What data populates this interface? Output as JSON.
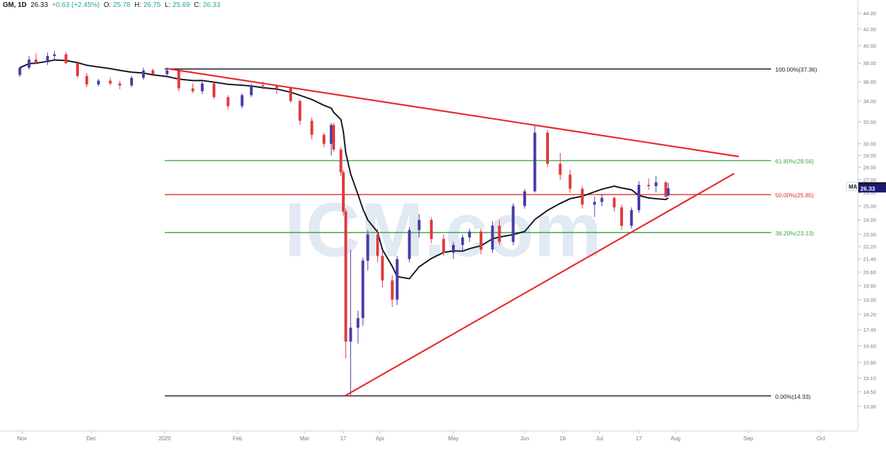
{
  "header": {
    "symbol": "GM, 1D",
    "last": "26.33",
    "change": "+0.63 (+2.45%)",
    "o_label": "O:",
    "o": "25.78",
    "h_label": "H:",
    "h": "26.75",
    "l_label": "L:",
    "l": "25.69",
    "c_label": "C:",
    "c": "26.33"
  },
  "watermark": "ICM.com",
  "badges": {
    "ma_label": "MA",
    "ma_value": "26.48",
    "price_value": "26.33"
  },
  "colors": {
    "up": "#4a3aa8",
    "down": "#e0393e",
    "ma": "#131722",
    "trend": "#e8292c",
    "fib_red": "#e8292c",
    "fib_green": "#3ba84a",
    "fib_black": "#131722",
    "price_badge": "#1e1a72",
    "ma_badge": "#131722"
  },
  "chart_data": {
    "type": "candlestick",
    "symbol": "GM",
    "timeframe": "1D",
    "ylim": [
      13.9,
      44.0
    ],
    "yticks": [
      "13.90",
      "14.50",
      "15.10",
      "15.80",
      "16.60",
      "17.40",
      "18.20",
      "19.00",
      "19.80",
      "20.60",
      "21.40",
      "22.20",
      "23.00",
      "24.00",
      "25.00",
      "26.00",
      "27.00",
      "28.00",
      "29.00",
      "30.00",
      "32.00",
      "34.00",
      "36.00",
      "38.00",
      "40.00",
      "42.00",
      "44.00"
    ],
    "xticks": [
      "Nov",
      "Dec",
      "2020",
      "Feb",
      "Mar",
      "17",
      "Apr",
      "May",
      "Jun",
      "16",
      "Jul",
      "17",
      "Aug",
      "Sep",
      "Oct"
    ],
    "fib_levels": [
      {
        "label": "100.00%(37.36)",
        "value": 37.36,
        "color": "black"
      },
      {
        "label": "61.80%(28.56)",
        "value": 28.56,
        "color": "green"
      },
      {
        "label": "50.00%(25.85)",
        "value": 25.85,
        "color": "red"
      },
      {
        "label": "38.20%(23.13)",
        "value": 23.13,
        "color": "green"
      },
      {
        "label": "0.00%(14.33)",
        "value": 14.33,
        "color": "black"
      }
    ],
    "trendlines": [
      {
        "from": [
          "2020-01-02",
          37.4
        ],
        "to": [
          "2020-08-28",
          28.9
        ]
      },
      {
        "from": [
          "2020-03-18",
          14.35
        ],
        "to": [
          "2020-08-26",
          27.5
        ]
      }
    ],
    "ma_value": 26.48,
    "last_price": 26.33,
    "candles": [
      [
        "2019-10-31",
        36.7,
        37.6,
        36.5,
        37.5
      ],
      [
        "2019-11-04",
        37.5,
        38.8,
        37.3,
        38.4
      ],
      [
        "2019-11-07",
        38.4,
        39.1,
        37.9,
        38.1
      ],
      [
        "2019-11-12",
        38.1,
        39.2,
        37.8,
        38.8
      ],
      [
        "2019-11-15",
        38.8,
        39.4,
        38.3,
        39.0
      ],
      [
        "2019-11-20",
        39.0,
        39.3,
        37.9,
        38.0
      ],
      [
        "2019-11-25",
        38.0,
        38.2,
        36.4,
        36.6
      ],
      [
        "2019-11-29",
        36.6,
        36.9,
        35.4,
        35.7
      ],
      [
        "2019-12-04",
        35.7,
        36.3,
        35.5,
        36.1
      ],
      [
        "2019-12-09",
        36.1,
        36.4,
        35.6,
        35.8
      ],
      [
        "2019-12-13",
        35.8,
        36.1,
        35.2,
        35.6
      ],
      [
        "2019-12-18",
        35.6,
        36.6,
        35.4,
        36.4
      ],
      [
        "2019-12-23",
        36.4,
        37.5,
        36.2,
        37.2
      ],
      [
        "2019-12-27",
        37.2,
        37.4,
        36.6,
        36.8
      ],
      [
        "2020-01-02",
        36.8,
        37.5,
        36.5,
        37.2
      ],
      [
        "2020-01-07",
        37.2,
        37.3,
        35.0,
        35.3
      ],
      [
        "2020-01-13",
        35.3,
        35.8,
        34.8,
        35.0
      ],
      [
        "2020-01-17",
        35.0,
        36.0,
        34.7,
        35.8
      ],
      [
        "2020-01-22",
        35.8,
        35.9,
        34.2,
        34.4
      ],
      [
        "2020-01-28",
        34.4,
        34.6,
        33.2,
        33.5
      ],
      [
        "2020-02-03",
        33.5,
        34.8,
        33.3,
        34.6
      ],
      [
        "2020-02-07",
        34.6,
        35.8,
        34.4,
        35.6
      ],
      [
        "2020-02-12",
        35.6,
        36.0,
        35.2,
        35.5
      ],
      [
        "2020-02-18",
        35.5,
        35.7,
        34.7,
        35.3
      ],
      [
        "2020-02-24",
        35.3,
        35.4,
        33.8,
        34.0
      ],
      [
        "2020-02-28",
        34.0,
        34.2,
        31.7,
        32.1
      ],
      [
        "2020-03-04",
        32.1,
        32.4,
        30.4,
        30.8
      ],
      [
        "2020-03-09",
        30.8,
        31.0,
        29.7,
        30.0
      ],
      [
        "2020-03-12",
        30.0,
        31.9,
        29.0,
        31.7
      ],
      [
        "2020-03-13",
        31.7,
        31.9,
        29.3,
        29.5
      ],
      [
        "2020-03-16",
        29.5,
        29.7,
        27.3,
        27.6
      ],
      [
        "2020-03-17",
        27.6,
        27.8,
        24.3,
        24.6
      ],
      [
        "2020-03-18",
        24.6,
        24.8,
        16.0,
        16.8
      ],
      [
        "2020-03-20",
        16.8,
        22.0,
        14.33,
        17.5
      ],
      [
        "2020-03-23",
        17.5,
        18.4,
        16.7,
        18.0
      ],
      [
        "2020-03-25",
        18.0,
        21.5,
        17.6,
        21.3
      ],
      [
        "2020-03-27",
        21.3,
        23.3,
        20.7,
        23.0
      ],
      [
        "2020-03-31",
        23.0,
        23.4,
        21.2,
        21.6
      ],
      [
        "2020-04-02",
        21.6,
        21.9,
        19.7,
        20.1
      ],
      [
        "2020-04-06",
        20.1,
        20.4,
        18.6,
        19.0
      ],
      [
        "2020-04-08",
        19.0,
        21.6,
        18.7,
        21.4
      ],
      [
        "2020-04-13",
        21.4,
        23.5,
        21.2,
        23.3
      ],
      [
        "2020-04-17",
        23.3,
        24.4,
        22.8,
        24.0
      ],
      [
        "2020-04-22",
        24.0,
        24.2,
        22.4,
        22.7
      ],
      [
        "2020-04-27",
        22.7,
        23.0,
        21.6,
        21.8
      ],
      [
        "2020-05-01",
        21.8,
        22.5,
        21.4,
        22.3
      ],
      [
        "2020-05-05",
        22.3,
        23.0,
        21.9,
        22.8
      ],
      [
        "2020-05-08",
        22.8,
        23.4,
        22.5,
        23.2
      ],
      [
        "2020-05-13",
        23.2,
        23.4,
        21.7,
        22.0
      ],
      [
        "2020-05-18",
        22.0,
        23.9,
        21.8,
        23.6
      ],
      [
        "2020-05-21",
        23.6,
        24.0,
        22.3,
        22.5
      ],
      [
        "2020-05-27",
        22.5,
        25.2,
        22.3,
        25.0
      ],
      [
        "2020-06-01",
        25.0,
        26.3,
        24.8,
        26.1
      ],
      [
        "2020-06-05",
        26.1,
        31.6,
        26.0,
        31.0
      ],
      [
        "2020-06-10",
        31.0,
        31.2,
        28.0,
        28.3
      ],
      [
        "2020-06-15",
        28.3,
        29.2,
        27.0,
        27.4
      ],
      [
        "2020-06-19",
        27.4,
        27.8,
        26.0,
        26.3
      ],
      [
        "2020-06-24",
        26.3,
        26.5,
        24.8,
        25.1
      ],
      [
        "2020-06-29",
        25.1,
        25.7,
        24.2,
        25.3
      ],
      [
        "2020-07-02",
        25.3,
        25.9,
        25.0,
        25.6
      ],
      [
        "2020-07-07",
        25.6,
        25.7,
        24.6,
        24.9
      ],
      [
        "2020-07-10",
        24.9,
        25.1,
        23.3,
        23.6
      ],
      [
        "2020-07-14",
        23.6,
        24.9,
        23.4,
        24.7
      ],
      [
        "2020-07-17",
        24.7,
        26.9,
        24.5,
        26.6
      ],
      [
        "2020-07-21",
        26.6,
        27.1,
        26.2,
        26.5
      ],
      [
        "2020-07-24",
        26.5,
        27.3,
        26.0,
        26.8
      ],
      [
        "2020-07-28",
        26.8,
        26.9,
        25.6,
        25.7
      ],
      [
        "2020-07-29",
        25.78,
        26.75,
        25.69,
        26.33
      ]
    ]
  }
}
